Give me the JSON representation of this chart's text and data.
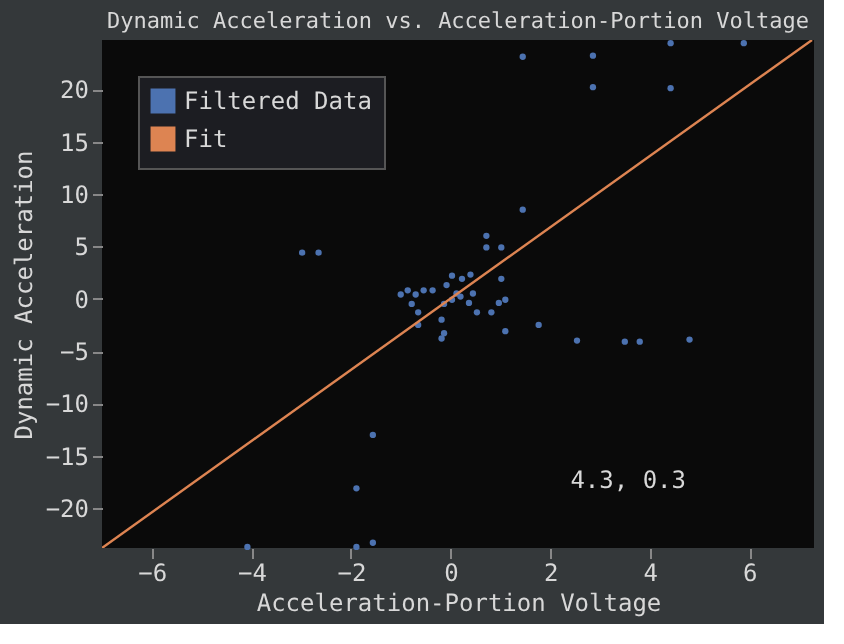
{
  "chart_data": {
    "type": "scatter",
    "title": "Dynamic Acceleration vs. Acceleration-Portion Voltage",
    "xlabel": "Acceleration-Portion Voltage",
    "ylabel": "Dynamic Acceleration",
    "xlim": [
      -7,
      7.3
    ],
    "ylim": [
      -23.8,
      24.7
    ],
    "xticks": [
      -6,
      -4,
      -2,
      0,
      2,
      4,
      6
    ],
    "yticks": [
      -20,
      -15,
      -10,
      -5,
      0,
      5,
      10,
      15,
      20
    ],
    "grid": false,
    "legend": "top left",
    "annotations": [
      "4.3, 0.3"
    ],
    "series": [
      {
        "name": "Filtered Data",
        "color": "#4c72b0",
        "type": "scatter",
        "marker": "circle",
        "x": [
          1.45,
          2.86,
          4.42,
          5.89,
          2.86,
          4.42,
          1.45,
          -2.98,
          -2.65,
          0.72,
          0.72,
          1.02,
          1.02,
          1.77,
          2.54,
          3.5,
          3.8,
          4.8,
          1.1,
          -1.56,
          -1.89,
          -1.56,
          -1.89,
          -4.08,
          0.03,
          -0.86,
          -1.0,
          -0.7,
          -0.54,
          -0.36,
          -0.78,
          -0.65,
          -0.65,
          -0.18,
          -0.18,
          -0.13,
          -0.08,
          0.03,
          0.23,
          0.4,
          0.45,
          0.37,
          0.53,
          0.82,
          0.97,
          1.1,
          0.2,
          -0.13,
          0.12
        ],
        "values": [
          23.1,
          23.2,
          24.4,
          24.4,
          20.2,
          20.1,
          8.5,
          4.4,
          4.4,
          6.0,
          4.9,
          4.9,
          1.9,
          -2.5,
          -4.0,
          -4.1,
          -4.1,
          -3.9,
          -3.1,
          -13.0,
          -18.1,
          -23.3,
          -23.7,
          -23.7,
          -0.1,
          0.8,
          0.4,
          0.4,
          0.8,
          0.8,
          -0.5,
          -1.3,
          -2.5,
          -2.0,
          -3.8,
          -3.3,
          1.3,
          2.2,
          1.9,
          2.3,
          0.5,
          -0.4,
          -1.3,
          -1.3,
          -0.4,
          -0.1,
          0.2,
          -0.5,
          0.5
        ]
      },
      {
        "name": "Fit",
        "color": "#dd8452",
        "type": "line",
        "x": [
          -7,
          7.26
        ],
        "values": [
          -23.8,
          24.7
        ]
      }
    ]
  }
}
